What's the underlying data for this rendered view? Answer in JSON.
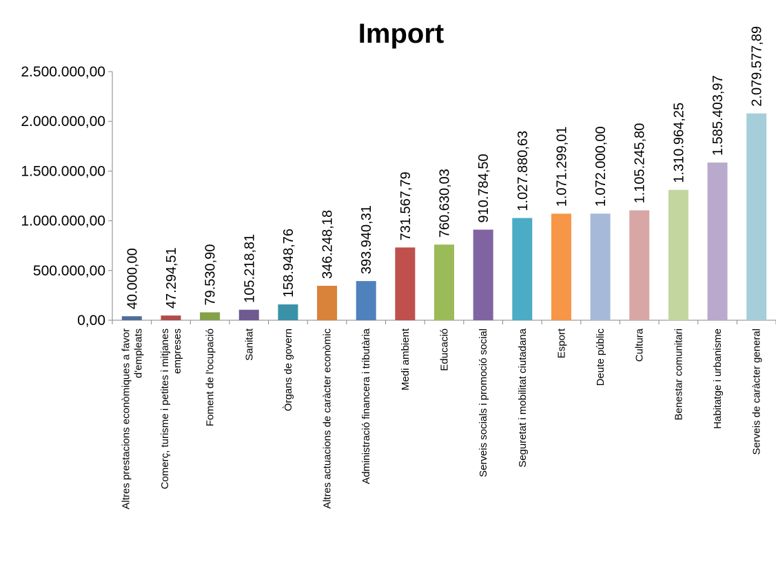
{
  "chart_data": {
    "type": "bar",
    "title": "Import",
    "xlabel": "",
    "ylabel": "",
    "ylim": [
      0,
      2500000
    ],
    "yticks": [
      0,
      500000,
      1000000,
      1500000,
      2000000,
      2500000
    ],
    "ytick_labels": [
      "0,00",
      "500.000,00",
      "1.000.000,00",
      "1.500.000,00",
      "2.000.000,00",
      "2.500.000,00"
    ],
    "grid": false,
    "legend": "none",
    "categories": [
      [
        "Altres prestacions econòmiques a favor",
        "d'empleats"
      ],
      [
        "Comerç, turisme i petites i mitjanes",
        "empreses"
      ],
      [
        "Foment de l'ocupació"
      ],
      [
        "Sanitat"
      ],
      [
        "Òrgans de govern"
      ],
      [
        "Altres actuacions de caràcter econòmic"
      ],
      [
        "Administració financera i tributària"
      ],
      [
        "Medi ambient"
      ],
      [
        "Educació"
      ],
      [
        "Serveis socials i promoció social"
      ],
      [
        "Seguretat i mobilitat ciutadana"
      ],
      [
        "Esport"
      ],
      [
        "Deute públic"
      ],
      [
        "Cultura"
      ],
      [
        "Benestar comunitari"
      ],
      [
        "Habitatge i urbanisme"
      ],
      [
        "Serveis de caràcter general"
      ]
    ],
    "values": [
      40000.0,
      47294.51,
      79530.9,
      105218.81,
      158948.76,
      346248.18,
      393940.31,
      731567.79,
      760630.03,
      910784.5,
      1027880.63,
      1071299.01,
      1072000.0,
      1105245.8,
      1310964.25,
      1585403.97,
      2079577.89
    ],
    "value_labels": [
      "40.000,00",
      "47.294,51",
      "79.530,90",
      "105.218,81",
      "158.948,76",
      "346.248,18",
      "393.940,31",
      "731.567,79",
      "760.630,03",
      "910.784,50",
      "1.027.880,63",
      "1.071.299,01",
      "1.072.000,00",
      "1.105.245,80",
      "1.310.964,25",
      "1.585.403,97",
      "2.079.577,89"
    ],
    "colors": [
      "#4F6D99",
      "#B04B4A",
      "#84A14A",
      "#6F5A91",
      "#3A91A8",
      "#D8823A",
      "#4F81BD",
      "#C0504D",
      "#9BBB59",
      "#8064A2",
      "#4BACC6",
      "#F79646",
      "#A7B9D9",
      "#D9A6A6",
      "#C4D6A0",
      "#B9A9CC",
      "#A6CDDA"
    ]
  }
}
